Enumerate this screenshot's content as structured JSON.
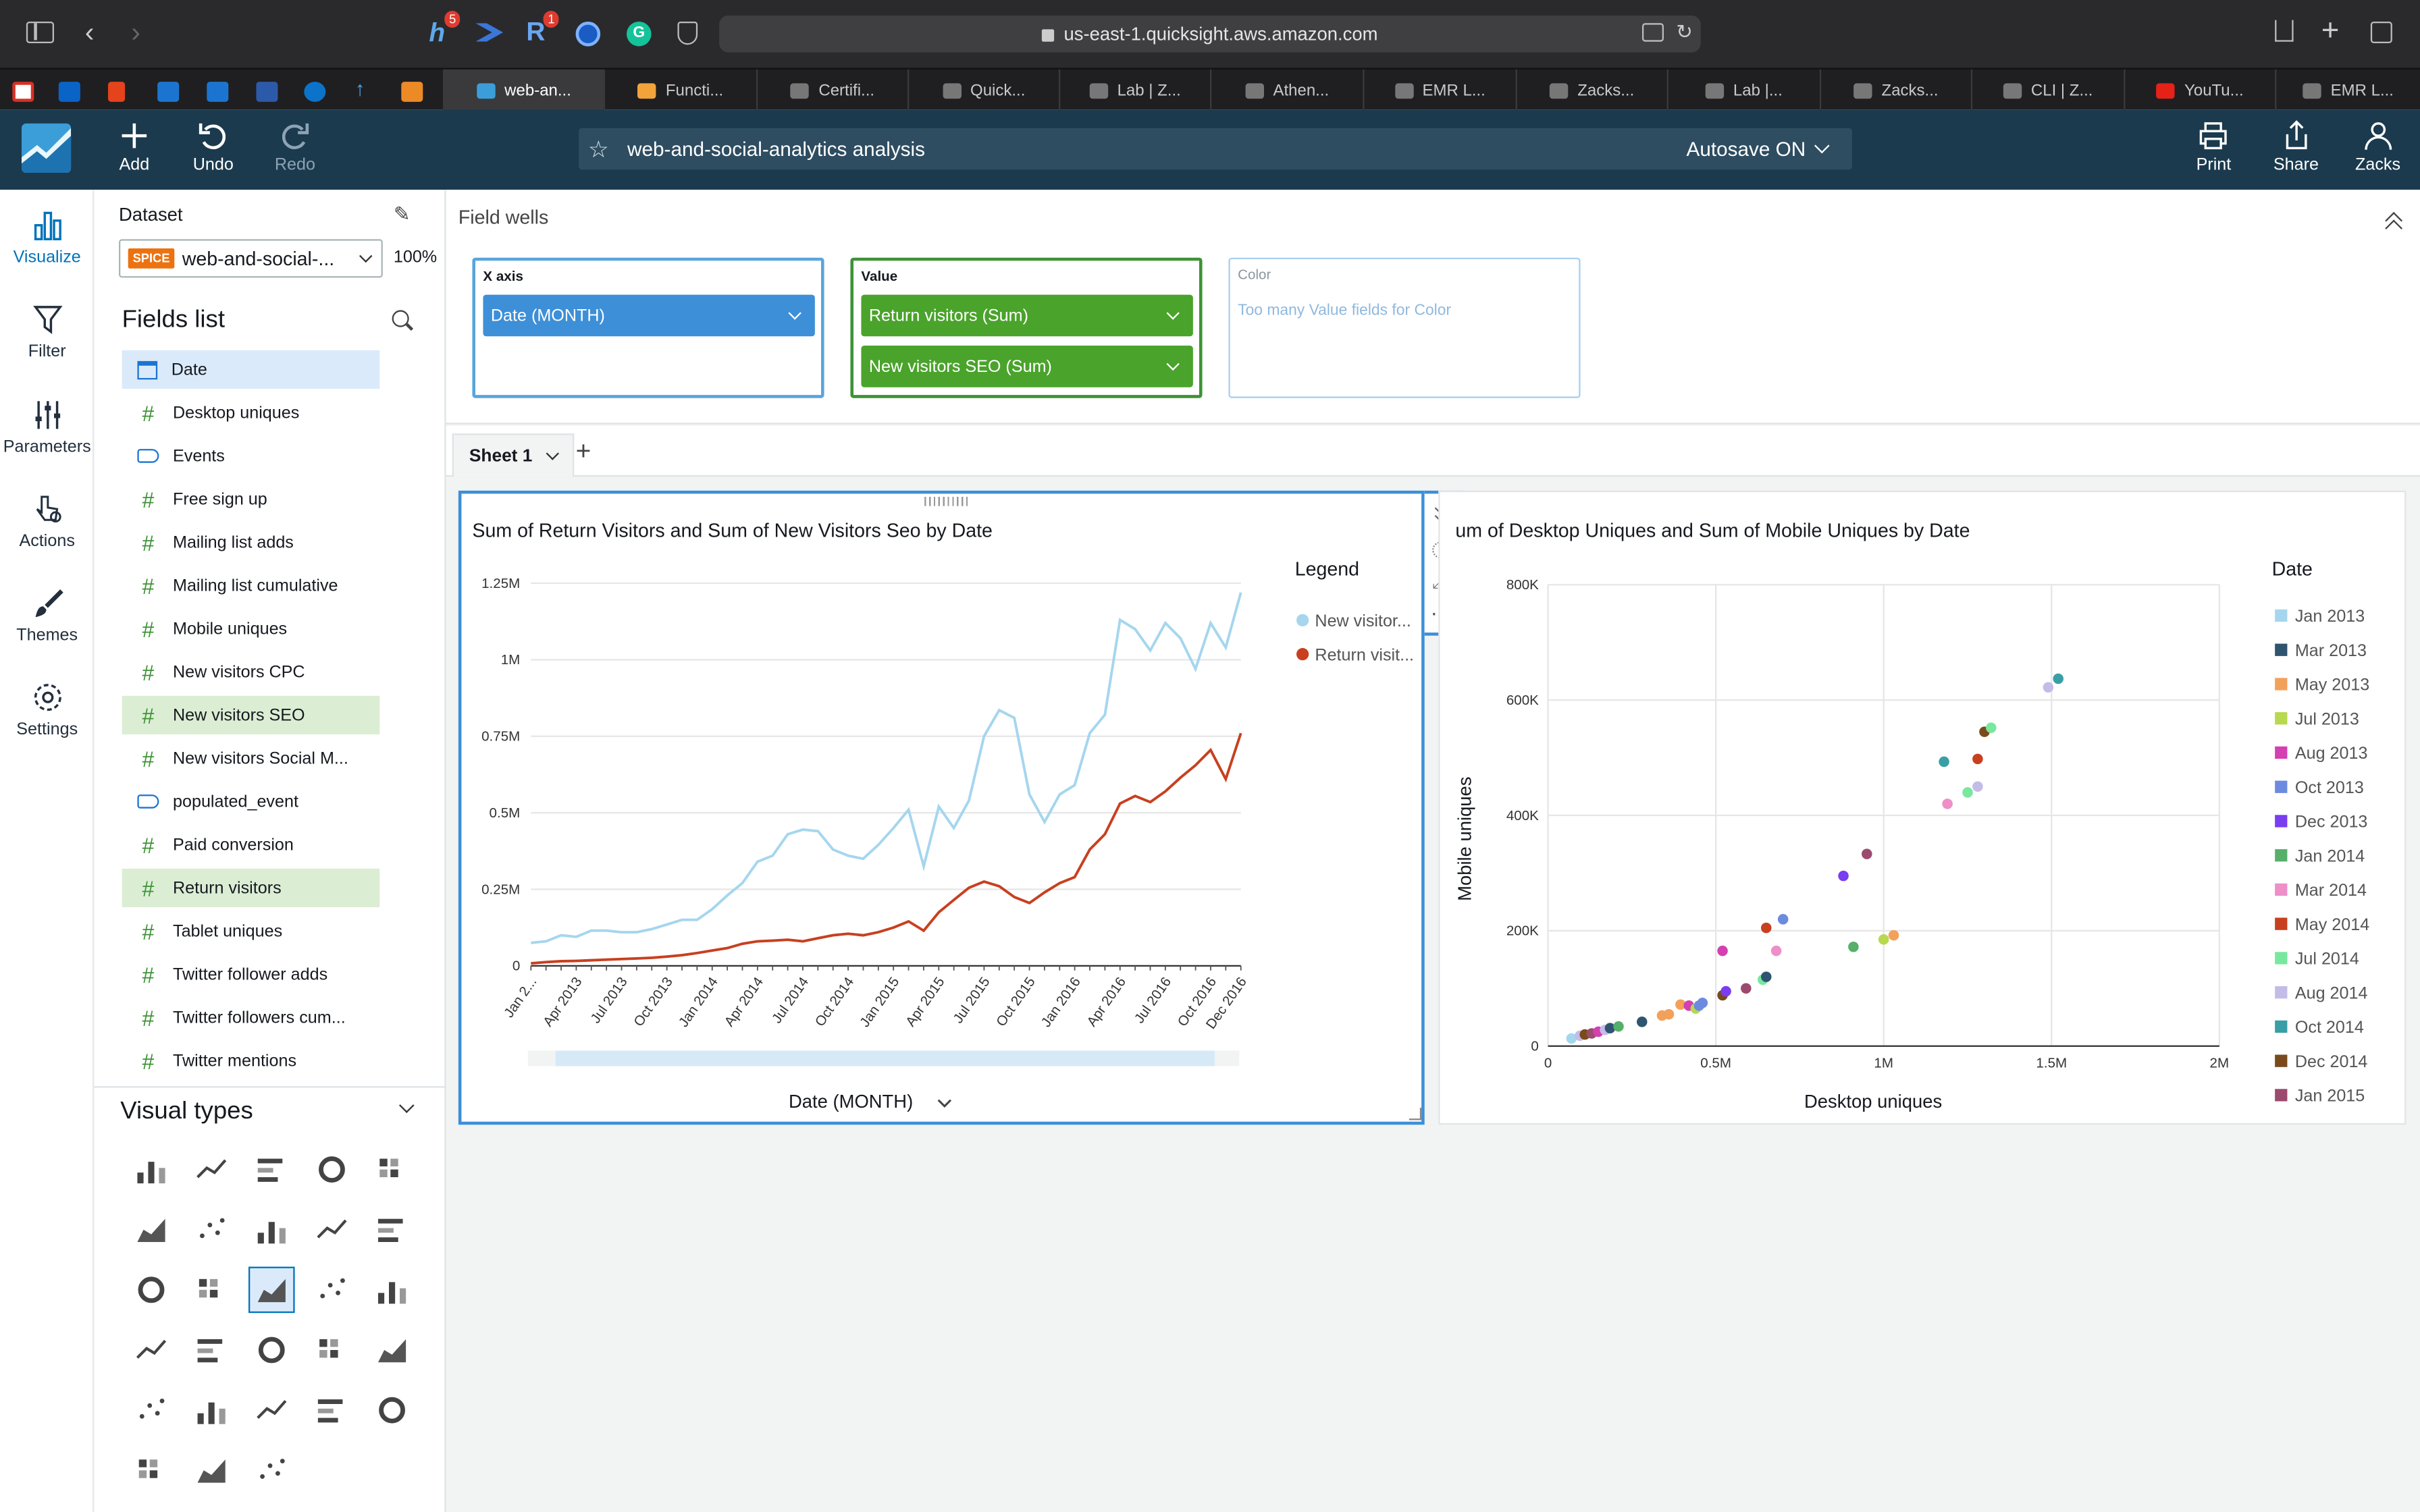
{
  "browser": {
    "url": "us-east-1.quicksight.aws.amazon.com",
    "badges": {
      "hacker": "5",
      "r": "1"
    },
    "tabs": [
      {
        "label": "web-an...",
        "active": true
      },
      {
        "label": "Functi..."
      },
      {
        "label": "Certifi..."
      },
      {
        "label": "Quick..."
      },
      {
        "label": "Lab | Z..."
      },
      {
        "label": "Athen..."
      },
      {
        "label": "EMR L..."
      },
      {
        "label": "Zacks..."
      },
      {
        "label": "Lab |..."
      },
      {
        "label": "Zacks..."
      },
      {
        "label": "CLI | Z..."
      },
      {
        "label": "YouTu..."
      },
      {
        "label": "EMR L..."
      }
    ]
  },
  "header": {
    "add": "Add",
    "undo": "Undo",
    "redo": "Redo",
    "analysis_name": "web-and-social-analytics analysis",
    "autosave": "Autosave ON",
    "print": "Print",
    "share": "Share",
    "user": "Zacks"
  },
  "rail": {
    "visualize": "Visualize",
    "filter": "Filter",
    "parameters": "Parameters",
    "actions": "Actions",
    "themes": "Themes",
    "settings": "Settings"
  },
  "dataset": {
    "title": "Dataset",
    "badge": "SPICE",
    "name": "web-and-social-...",
    "percent": "100%",
    "fields_title": "Fields list",
    "fields": [
      {
        "name": "Date",
        "type": "date",
        "state": "highlight"
      },
      {
        "name": "Desktop uniques",
        "type": "measure"
      },
      {
        "name": "Events",
        "type": "dimension"
      },
      {
        "name": "Free sign up",
        "type": "measure"
      },
      {
        "name": "Mailing list adds",
        "type": "measure"
      },
      {
        "name": "Mailing list cumulative",
        "type": "measure"
      },
      {
        "name": "Mobile uniques",
        "type": "measure"
      },
      {
        "name": "New visitors CPC",
        "type": "measure"
      },
      {
        "name": "New visitors SEO",
        "type": "measure",
        "state": "selected"
      },
      {
        "name": "New visitors Social M...",
        "type": "measure"
      },
      {
        "name": "populated_event",
        "type": "dimension"
      },
      {
        "name": "Paid conversion",
        "type": "measure"
      },
      {
        "name": "Return visitors",
        "type": "measure",
        "state": "selected"
      },
      {
        "name": "Tablet uniques",
        "type": "measure"
      },
      {
        "name": "Twitter follower adds",
        "type": "measure"
      },
      {
        "name": "Twitter followers cum...",
        "type": "measure"
      },
      {
        "name": "Twitter mentions",
        "type": "measure"
      }
    ],
    "visual_types_title": "Visual types"
  },
  "field_wells": {
    "title": "Field wells",
    "x_axis": {
      "label": "X axis",
      "value": "Date (MONTH)"
    },
    "value": {
      "label": "Value",
      "items": [
        "Return visitors (Sum)",
        "New visitors SEO (Sum)"
      ]
    },
    "color": {
      "label": "Color",
      "placeholder": "Too many Value fields for Color"
    }
  },
  "sheet": {
    "tab": "Sheet 1"
  },
  "colors": {
    "header": "#1b3a4e",
    "accent": "#0073bb",
    "green": "#3e9236",
    "new_visitors": "#a5d6ee",
    "return_visitors": "#c8401f"
  },
  "chart_data": [
    {
      "type": "line",
      "title": "Sum of Return Visitors and Sum of New Visitors Seo by Date",
      "xlabel": "Date (MONTH)",
      "legend_title": "Legend",
      "legend_position": "right",
      "x_ticks": [
        "Jan 2...",
        "Apr 2013",
        "Jul 2013",
        "Oct 2013",
        "Jan 2014",
        "Apr 2014",
        "Jul 2014",
        "Oct 2014",
        "Jan 2015",
        "Apr 2015",
        "Jul 2015",
        "Oct 2015",
        "Jan 2016",
        "Apr 2016",
        "Jul 2016",
        "Oct 2016",
        "Dec 2016"
      ],
      "y_ticks": [
        "0",
        "0.25M",
        "0.5M",
        "0.75M",
        "1M",
        "1.25M"
      ],
      "ylim": [
        0,
        1250000
      ],
      "grid": true,
      "x": [
        "Jan 2013",
        "Feb 2013",
        "Mar 2013",
        "Apr 2013",
        "May 2013",
        "Jun 2013",
        "Jul 2013",
        "Aug 2013",
        "Sep 2013",
        "Oct 2013",
        "Nov 2013",
        "Dec 2013",
        "Jan 2014",
        "Feb 2014",
        "Mar 2014",
        "Apr 2014",
        "May 2014",
        "Jun 2014",
        "Jul 2014",
        "Aug 2014",
        "Sep 2014",
        "Oct 2014",
        "Nov 2014",
        "Dec 2014",
        "Jan 2015",
        "Feb 2015",
        "Mar 2015",
        "Apr 2015",
        "May 2015",
        "Jun 2015",
        "Jul 2015",
        "Aug 2015",
        "Sep 2015",
        "Oct 2015",
        "Nov 2015",
        "Dec 2015",
        "Jan 2016",
        "Feb 2016",
        "Mar 2016",
        "Apr 2016",
        "May 2016",
        "Jun 2016",
        "Jul 2016",
        "Aug 2016",
        "Sep 2016",
        "Oct 2016",
        "Nov 2016",
        "Dec 2016"
      ],
      "series": [
        {
          "name": "New visitor...",
          "color": "#a5d6ee",
          "values": [
            75000,
            80000,
            100000,
            95000,
            115000,
            115000,
            110000,
            110000,
            120000,
            135000,
            150000,
            150000,
            185000,
            230000,
            270000,
            340000,
            360000,
            430000,
            445000,
            440000,
            380000,
            360000,
            350000,
            395000,
            450000,
            510000,
            325000,
            520000,
            450000,
            540000,
            750000,
            835000,
            810000,
            560000,
            470000,
            560000,
            590000,
            760000,
            820000,
            1130000,
            1100000,
            1030000,
            1120000,
            1070000,
            970000,
            1120000,
            1040000,
            1220000
          ]
        },
        {
          "name": "Return visit...",
          "color": "#c8401f",
          "values": [
            8000,
            12000,
            15000,
            16000,
            18000,
            20000,
            22000,
            24000,
            26000,
            30000,
            35000,
            42000,
            50000,
            58000,
            72000,
            80000,
            82000,
            85000,
            80000,
            90000,
            100000,
            105000,
            100000,
            110000,
            125000,
            145000,
            115000,
            175000,
            215000,
            255000,
            275000,
            260000,
            225000,
            205000,
            240000,
            270000,
            290000,
            380000,
            430000,
            530000,
            555000,
            535000,
            570000,
            615000,
            655000,
            705000,
            610000,
            760000
          ]
        }
      ]
    },
    {
      "type": "scatter",
      "title": "um of Desktop Uniques and Sum of Mobile Uniques by Date",
      "xlabel": "Desktop uniques",
      "ylabel": "Mobile uniques",
      "legend_title": "Date",
      "legend_position": "right",
      "x_ticks": [
        "0",
        "0.5M",
        "1M",
        "1.5M",
        "2M"
      ],
      "y_ticks": [
        "0",
        "200K",
        "400K",
        "600K",
        "800K"
      ],
      "xlim": [
        0,
        2000000
      ],
      "ylim": [
        0,
        800000
      ],
      "grid": true,
      "legend": [
        {
          "label": "Jan 2013",
          "color": "#a5d6ee"
        },
        {
          "label": "Mar 2013",
          "color": "#2f5470"
        },
        {
          "label": "May 2013",
          "color": "#f3a15a"
        },
        {
          "label": "Jul 2013",
          "color": "#b8d84e"
        },
        {
          "label": "Aug 2013",
          "color": "#d43fb1"
        },
        {
          "label": "Oct 2013",
          "color": "#6c8be0"
        },
        {
          "label": "Dec 2013",
          "color": "#7a3df0"
        },
        {
          "label": "Jan 2014",
          "color": "#56b06a"
        },
        {
          "label": "Mar 2014",
          "color": "#ee8fc8"
        },
        {
          "label": "May 2014",
          "color": "#c8401f"
        },
        {
          "label": "Jul 2014",
          "color": "#78e89e"
        },
        {
          "label": "Aug 2014",
          "color": "#c3bce8"
        },
        {
          "label": "Oct 2014",
          "color": "#3a9ea6"
        },
        {
          "label": "Dec 2014",
          "color": "#7a4a1c"
        },
        {
          "label": "Jan 2015",
          "color": "#9c4a6e"
        }
      ],
      "points": [
        {
          "x": 70000,
          "y": 13000,
          "c": "#a5d6ee"
        },
        {
          "x": 95000,
          "y": 18000,
          "c": "#c3bce8"
        },
        {
          "x": 110000,
          "y": 20000,
          "c": "#7a4a1c"
        },
        {
          "x": 130000,
          "y": 22000,
          "c": "#9c4a6e"
        },
        {
          "x": 150000,
          "y": 25000,
          "c": "#d43fb1"
        },
        {
          "x": 170000,
          "y": 28000,
          "c": "#c3bce8"
        },
        {
          "x": 185000,
          "y": 31000,
          "c": "#2f5470"
        },
        {
          "x": 210000,
          "y": 34000,
          "c": "#56b06a"
        },
        {
          "x": 280000,
          "y": 42000,
          "c": "#2f5470"
        },
        {
          "x": 340000,
          "y": 53000,
          "c": "#f3a15a"
        },
        {
          "x": 360000,
          "y": 55000,
          "c": "#f3a15a"
        },
        {
          "x": 395000,
          "y": 72000,
          "c": "#f3a15a"
        },
        {
          "x": 420000,
          "y": 70000,
          "c": "#d43fb1"
        },
        {
          "x": 440000,
          "y": 65000,
          "c": "#b8d84e"
        },
        {
          "x": 450000,
          "y": 70000,
          "c": "#6c8be0"
        },
        {
          "x": 460000,
          "y": 75000,
          "c": "#6c8be0"
        },
        {
          "x": 520000,
          "y": 165000,
          "c": "#d43fb1"
        },
        {
          "x": 520000,
          "y": 88000,
          "c": "#7a4a1c"
        },
        {
          "x": 530000,
          "y": 95000,
          "c": "#7a3df0"
        },
        {
          "x": 590000,
          "y": 100000,
          "c": "#9c4a6e"
        },
        {
          "x": 640000,
          "y": 115000,
          "c": "#78e89e"
        },
        {
          "x": 650000,
          "y": 120000,
          "c": "#2f5470"
        },
        {
          "x": 650000,
          "y": 205000,
          "c": "#c8401f"
        },
        {
          "x": 680000,
          "y": 165000,
          "c": "#ee8fc8"
        },
        {
          "x": 700000,
          "y": 220000,
          "c": "#6c8be0"
        },
        {
          "x": 880000,
          "y": 295000,
          "c": "#7a3df0"
        },
        {
          "x": 910000,
          "y": 172000,
          "c": "#56b06a"
        },
        {
          "x": 950000,
          "y": 333000,
          "c": "#9c4a6e"
        },
        {
          "x": 1000000,
          "y": 185000,
          "c": "#b8d84e"
        },
        {
          "x": 1030000,
          "y": 192000,
          "c": "#f3a15a"
        },
        {
          "x": 1180000,
          "y": 493000,
          "c": "#3a9ea6"
        },
        {
          "x": 1190000,
          "y": 420000,
          "c": "#ee8fc8"
        },
        {
          "x": 1250000,
          "y": 440000,
          "c": "#78e89e"
        },
        {
          "x": 1280000,
          "y": 450000,
          "c": "#c3bce8"
        },
        {
          "x": 1280000,
          "y": 498000,
          "c": "#c8401f"
        },
        {
          "x": 1300000,
          "y": 545000,
          "c": "#7a4a1c"
        },
        {
          "x": 1320000,
          "y": 552000,
          "c": "#78e89e"
        },
        {
          "x": 1490000,
          "y": 622000,
          "c": "#c3bce8"
        },
        {
          "x": 1520000,
          "y": 637000,
          "c": "#3a9ea6"
        }
      ]
    }
  ]
}
